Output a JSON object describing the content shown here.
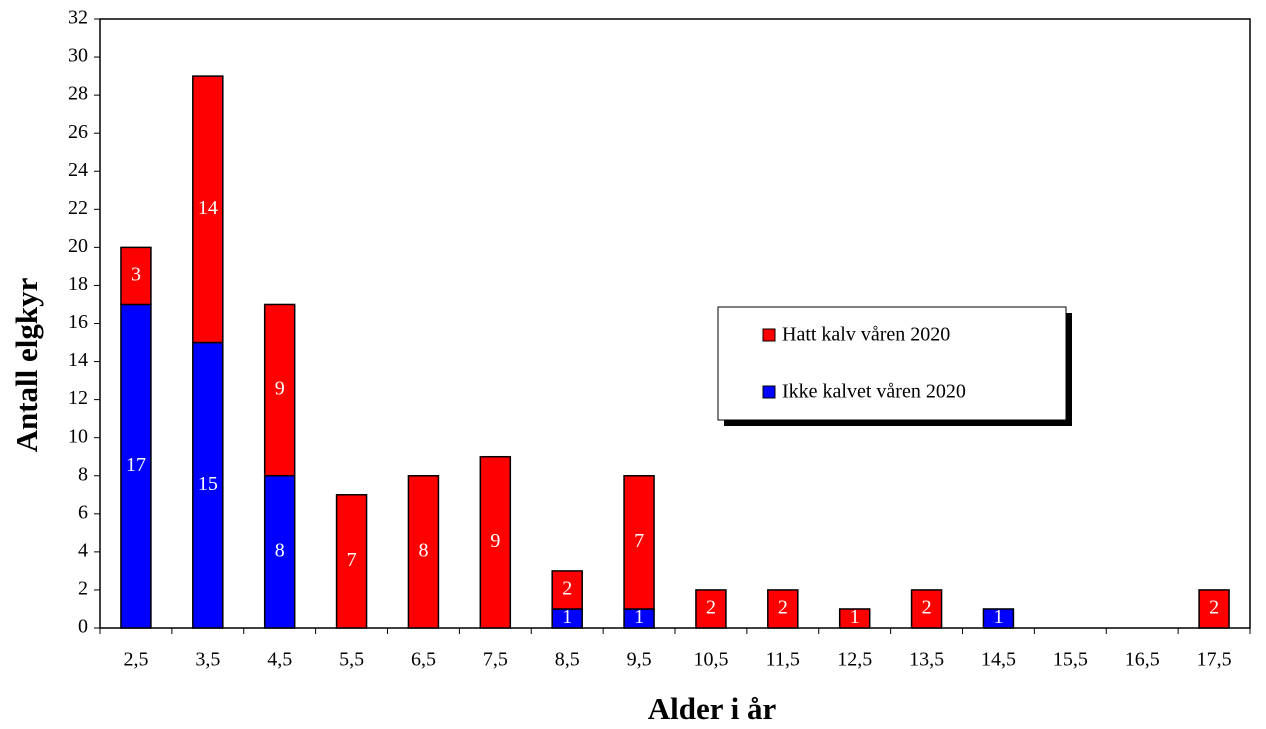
{
  "chart_data": {
    "type": "stacked-bar",
    "x_label": "Alder i år",
    "y_label": "Antall elgkyr",
    "categories": [
      "2,5",
      "3,5",
      "4,5",
      "5,5",
      "6,5",
      "7,5",
      "8,5",
      "9,5",
      "10,5",
      "11,5",
      "12,5",
      "13,5",
      "14,5",
      "15,5",
      "16,5",
      "17,5"
    ],
    "series": [
      {
        "name": "Ikke kalvet våren 2020",
        "color": "#0000ff",
        "values": [
          17,
          15,
          8,
          0,
          0,
          0,
          1,
          1,
          0,
          0,
          0,
          0,
          1,
          0,
          0,
          0
        ]
      },
      {
        "name": "Hatt kalv våren 2020",
        "color": "#ff0000",
        "values": [
          3,
          14,
          9,
          7,
          8,
          9,
          2,
          7,
          2,
          2,
          1,
          2,
          0,
          0,
          0,
          2
        ]
      }
    ],
    "ylim": [
      0,
      32
    ],
    "yticks": [
      0,
      2,
      4,
      6,
      8,
      10,
      12,
      14,
      16,
      18,
      20,
      22,
      24,
      26,
      28,
      30,
      32
    ],
    "grid": false
  }
}
